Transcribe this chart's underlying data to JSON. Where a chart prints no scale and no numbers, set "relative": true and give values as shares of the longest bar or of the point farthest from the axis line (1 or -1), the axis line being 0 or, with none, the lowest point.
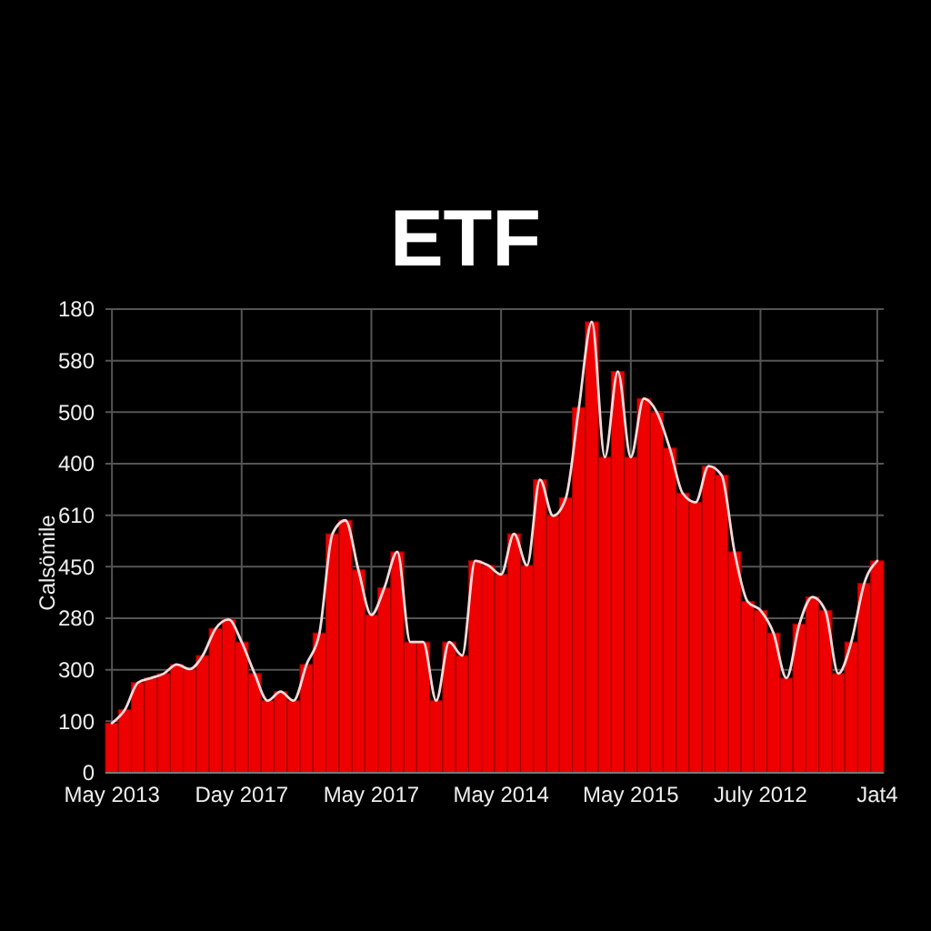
{
  "chart_data": {
    "type": "bar",
    "title": "ETF",
    "ylabel": "Calsömile",
    "relative": true,
    "categories": [
      "May 2013",
      null,
      null,
      null,
      null,
      null,
      null,
      null,
      null,
      null,
      "Day 2017",
      null,
      null,
      null,
      null,
      null,
      null,
      null,
      null,
      null,
      "May 2017",
      null,
      null,
      null,
      null,
      null,
      null,
      null,
      null,
      null,
      "May 2014",
      null,
      null,
      null,
      null,
      null,
      null,
      null,
      null,
      null,
      "May 2015",
      null,
      null,
      null,
      null,
      null,
      null,
      null,
      null,
      null,
      "July 2012",
      null,
      null,
      null,
      null,
      null,
      null,
      null,
      null,
      "Jat4"
    ],
    "series": [
      {
        "color": "#ee0000",
        "values": [
          0.11,
          0.14,
          0.2,
          0.21,
          0.22,
          0.24,
          0.23,
          0.26,
          0.32,
          0.34,
          0.29,
          0.22,
          0.16,
          0.18,
          0.16,
          0.24,
          0.31,
          0.53,
          0.56,
          0.45,
          0.35,
          0.41,
          0.49,
          0.29,
          0.29,
          0.16,
          0.29,
          0.26,
          0.47,
          0.46,
          0.44,
          0.53,
          0.46,
          0.65,
          0.57,
          0.61,
          0.81,
          1,
          0.7,
          0.89,
          0.7,
          0.83,
          0.8,
          0.72,
          0.62,
          0.6,
          0.68,
          0.66,
          0.49,
          0.38,
          0.36,
          0.31,
          0.21,
          0.33,
          0.39,
          0.36,
          0.22,
          0.29,
          0.42,
          0.47
        ]
      },
      {
        "type": "line",
        "color": "#f6dada",
        "values": [
          0.11,
          0.14,
          0.2,
          0.21,
          0.22,
          0.24,
          0.23,
          0.26,
          0.32,
          0.34,
          0.29,
          0.22,
          0.16,
          0.18,
          0.16,
          0.24,
          0.31,
          0.53,
          0.56,
          0.45,
          0.35,
          0.41,
          0.49,
          0.29,
          0.29,
          0.16,
          0.29,
          0.26,
          0.47,
          0.46,
          0.44,
          0.53,
          0.46,
          0.65,
          0.57,
          0.61,
          0.81,
          1,
          0.7,
          0.89,
          0.7,
          0.83,
          0.8,
          0.72,
          0.62,
          0.6,
          0.68,
          0.66,
          0.49,
          0.38,
          0.36,
          0.31,
          0.21,
          0.33,
          0.39,
          0.36,
          0.22,
          0.29,
          0.42,
          0.47
        ]
      }
    ],
    "annotations": [
      "0",
      "100",
      "300",
      "280",
      "450",
      "610",
      "400",
      "500",
      "580",
      "180"
    ],
    "grid": true
  }
}
